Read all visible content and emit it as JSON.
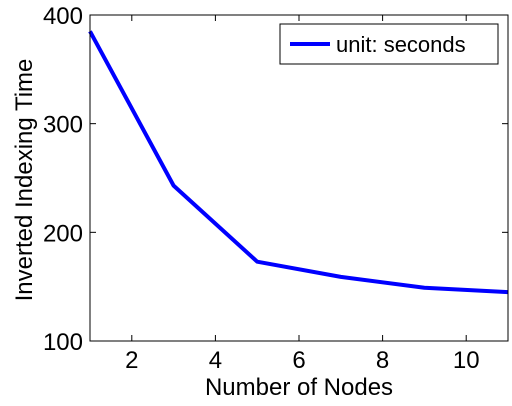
{
  "chart_data": {
    "type": "line",
    "xlabel": "Number of Nodes",
    "ylabel": "Inverted Indexing Time",
    "xlim": [
      1,
      11
    ],
    "ylim": [
      100,
      400
    ],
    "xticks": [
      2,
      4,
      6,
      8,
      10
    ],
    "yticks": [
      100,
      200,
      300,
      400
    ],
    "grid": false,
    "legend_position": "top-right",
    "series": [
      {
        "name": "unit: seconds",
        "color": "#0000ff",
        "x": [
          1,
          3,
          5,
          7,
          9,
          11
        ],
        "y": [
          385,
          243,
          173,
          159,
          149,
          145
        ]
      }
    ]
  }
}
